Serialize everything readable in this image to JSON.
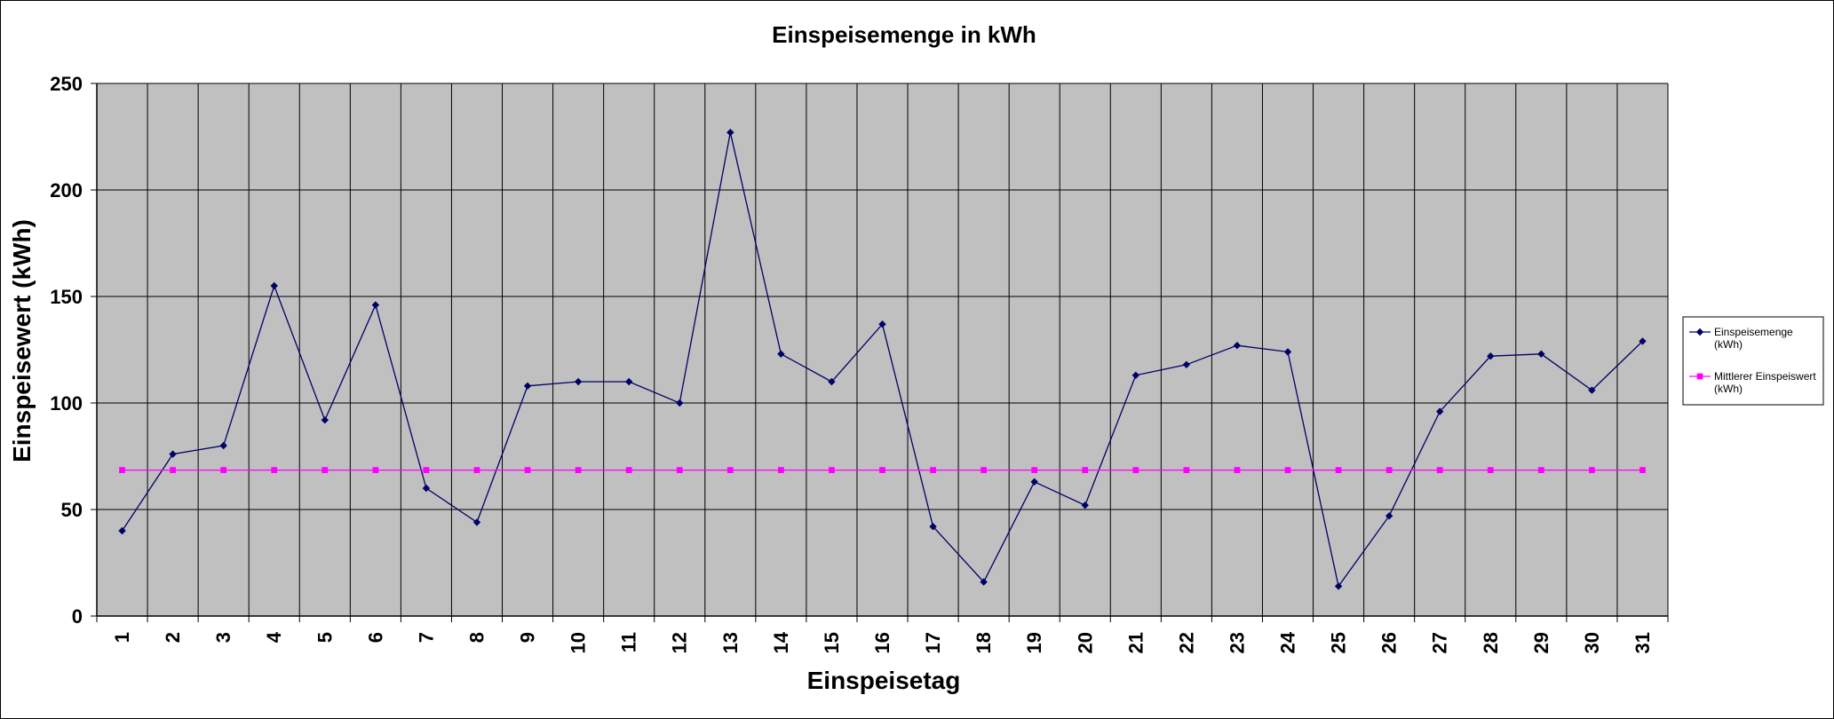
{
  "chart_data": {
    "type": "line",
    "title": "Einspeisemenge in kWh",
    "xlabel": "Einspeisetag",
    "ylabel": "Einspeisewert  (kWh)",
    "categories": [
      "1",
      "2",
      "3",
      "4",
      "5",
      "6",
      "7",
      "8",
      "9",
      "10",
      "11",
      "12",
      "13",
      "14",
      "15",
      "16",
      "17",
      "18",
      "19",
      "20",
      "21",
      "22",
      "23",
      "24",
      "25",
      "26",
      "27",
      "28",
      "29",
      "30",
      "31"
    ],
    "ylim": [
      0,
      250
    ],
    "yticks": [
      0,
      50,
      100,
      150,
      200,
      250
    ],
    "ytick_labels": [
      "0",
      "50",
      "100",
      "150",
      "200",
      "250"
    ],
    "grid": true,
    "legend_position": "right",
    "series": [
      {
        "name": "Einspeisemenge (kWh)",
        "legend_lines": [
          "Einspeisemenge",
          "(kWh)"
        ],
        "color": "#000066",
        "marker": "diamond",
        "values": [
          40,
          76,
          80,
          155,
          92,
          146,
          60,
          44,
          108,
          110,
          110,
          100,
          227,
          123,
          110,
          137,
          42,
          16,
          63,
          52,
          113,
          118,
          127,
          124,
          14,
          47,
          96,
          122,
          123,
          106,
          129
        ]
      },
      {
        "name": "Mittlerer Einspeiswert (kWh)",
        "legend_lines": [
          "Mittlerer Einspeiswert",
          "(kWh)"
        ],
        "color": "#ff00ff",
        "marker": "square",
        "values": [
          68.5,
          68.5,
          68.5,
          68.5,
          68.5,
          68.5,
          68.5,
          68.5,
          68.5,
          68.5,
          68.5,
          68.5,
          68.5,
          68.5,
          68.5,
          68.5,
          68.5,
          68.5,
          68.5,
          68.5,
          68.5,
          68.5,
          68.5,
          68.5,
          68.5,
          68.5,
          68.5,
          68.5,
          68.5,
          68.5,
          68.5
        ]
      }
    ],
    "plot_background": "#c0c0c0",
    "grid_color": "#000000"
  }
}
